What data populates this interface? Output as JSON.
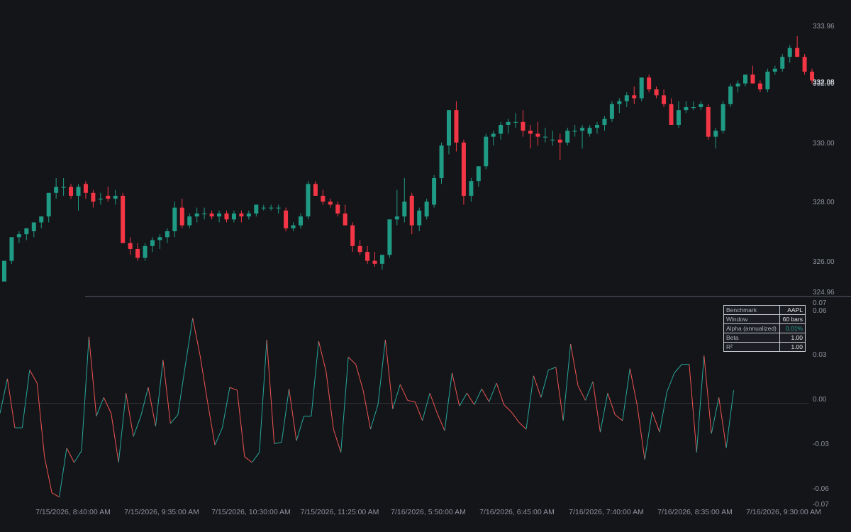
{
  "colors": {
    "background": "#141519",
    "up": "#26a69a",
    "down": "#ef5350",
    "up_body": "#1f9a84",
    "down_body": "#f23645",
    "pane_divider": "#5a5e66",
    "zero_line": "#2f3237",
    "table_border": "#c6cad2"
  },
  "price_axis": {
    "labels": [
      "333.96",
      "332.00",
      "330.00",
      "328.00",
      "326.00",
      "324.96"
    ],
    "last_price": "332.08"
  },
  "indicator_axis": {
    "labels": [
      "0.07",
      "0.06",
      "0.03",
      "0.00",
      "-0.03",
      "-0.06",
      "-0.07"
    ]
  },
  "time_axis": {
    "labels": [
      "7/15/2026, 8:40:00 AM",
      "7/15/2026, 9:35:00 AM",
      "7/15/2026, 10:30:00 AM",
      "7/15/2026, 11:25:00 AM",
      "7/16/2026, 5:50:00 AM",
      "7/16/2026, 6:45:00 AM",
      "7/16/2026, 7:40:00 AM",
      "7/16/2026, 8:35:00 AM",
      "7/16/2026, 9:30:00 AM"
    ]
  },
  "stats_table": [
    {
      "key": "Benchmark",
      "value": "AAPL",
      "tone": "neutral"
    },
    {
      "key": "Window",
      "value": "60 bars",
      "tone": "neutral"
    },
    {
      "key": "Alpha (annualized)",
      "value": "0.01%",
      "tone": "positive"
    },
    {
      "key": "Beta",
      "value": "1.00",
      "tone": "neutral"
    },
    {
      "key": "R²",
      "value": "1.00",
      "tone": "neutral"
    }
  ],
  "chart_data": {
    "type": "candlestick",
    "bar_interval_minutes": 5,
    "price_range": [
      324.96,
      333.96
    ],
    "indicator_range": [
      -0.07,
      0.07
    ],
    "candles": [
      {
        "o": 325.3,
        "h": 326.0,
        "l": 325.3,
        "c": 326.0
      },
      {
        "o": 326.0,
        "h": 326.8,
        "l": 325.9,
        "c": 326.8
      },
      {
        "o": 326.8,
        "h": 327.0,
        "l": 326.6,
        "c": 326.9
      },
      {
        "o": 326.9,
        "h": 327.1,
        "l": 326.7,
        "c": 327.1
      },
      {
        "o": 327.0,
        "h": 327.3,
        "l": 326.8,
        "c": 327.3
      },
      {
        "o": 327.3,
        "h": 327.5,
        "l": 327.1,
        "c": 327.5
      },
      {
        "o": 327.5,
        "h": 328.3,
        "l": 327.3,
        "c": 328.3
      },
      {
        "o": 328.3,
        "h": 328.8,
        "l": 328.1,
        "c": 328.5
      },
      {
        "o": 328.5,
        "h": 328.8,
        "l": 328.2,
        "c": 328.5
      },
      {
        "o": 328.5,
        "h": 328.6,
        "l": 328.1,
        "c": 328.2
      },
      {
        "o": 328.2,
        "h": 328.6,
        "l": 327.7,
        "c": 328.5
      },
      {
        "o": 328.6,
        "h": 328.7,
        "l": 328.1,
        "c": 328.3
      },
      {
        "o": 328.3,
        "h": 328.4,
        "l": 327.8,
        "c": 328.0
      },
      {
        "o": 328.1,
        "h": 328.3,
        "l": 327.9,
        "c": 328.1
      },
      {
        "o": 328.2,
        "h": 328.5,
        "l": 328.0,
        "c": 328.1
      },
      {
        "o": 328.1,
        "h": 328.4,
        "l": 327.9,
        "c": 328.2
      },
      {
        "o": 328.2,
        "h": 328.3,
        "l": 326.6,
        "c": 326.6
      },
      {
        "o": 326.6,
        "h": 326.8,
        "l": 326.2,
        "c": 326.4
      },
      {
        "o": 326.4,
        "h": 326.6,
        "l": 326.0,
        "c": 326.1
      },
      {
        "o": 326.1,
        "h": 326.6,
        "l": 326.0,
        "c": 326.5
      },
      {
        "o": 326.5,
        "h": 326.8,
        "l": 326.3,
        "c": 326.7
      },
      {
        "o": 326.7,
        "h": 326.9,
        "l": 326.4,
        "c": 326.8
      },
      {
        "o": 326.8,
        "h": 327.1,
        "l": 326.6,
        "c": 327.0
      },
      {
        "o": 327.0,
        "h": 328.0,
        "l": 326.8,
        "c": 327.8
      },
      {
        "o": 327.8,
        "h": 328.1,
        "l": 327.1,
        "c": 327.2
      },
      {
        "o": 327.2,
        "h": 327.6,
        "l": 327.1,
        "c": 327.5
      },
      {
        "o": 327.5,
        "h": 327.8,
        "l": 327.3,
        "c": 327.6
      },
      {
        "o": 327.6,
        "h": 327.8,
        "l": 327.4,
        "c": 327.6
      },
      {
        "o": 327.6,
        "h": 327.7,
        "l": 327.4,
        "c": 327.5
      },
      {
        "o": 327.5,
        "h": 327.7,
        "l": 327.3,
        "c": 327.6
      },
      {
        "o": 327.6,
        "h": 327.7,
        "l": 327.3,
        "c": 327.4
      },
      {
        "o": 327.4,
        "h": 327.7,
        "l": 327.3,
        "c": 327.6
      },
      {
        "o": 327.6,
        "h": 327.7,
        "l": 327.3,
        "c": 327.5
      },
      {
        "o": 327.5,
        "h": 327.7,
        "l": 327.4,
        "c": 327.6
      },
      {
        "o": 327.6,
        "h": 327.9,
        "l": 327.5,
        "c": 327.9
      },
      {
        "o": 327.8,
        "h": 327.9,
        "l": 327.7,
        "c": 327.8
      },
      {
        "o": 327.8,
        "h": 327.9,
        "l": 327.7,
        "c": 327.8
      },
      {
        "o": 327.8,
        "h": 327.9,
        "l": 327.6,
        "c": 327.8
      },
      {
        "o": 327.7,
        "h": 327.8,
        "l": 327.0,
        "c": 327.1
      },
      {
        "o": 327.1,
        "h": 327.3,
        "l": 327.0,
        "c": 327.2
      },
      {
        "o": 327.2,
        "h": 327.6,
        "l": 327.1,
        "c": 327.5
      },
      {
        "o": 327.5,
        "h": 328.7,
        "l": 327.4,
        "c": 328.6
      },
      {
        "o": 328.6,
        "h": 328.7,
        "l": 328.2,
        "c": 328.2
      },
      {
        "o": 328.2,
        "h": 328.4,
        "l": 327.9,
        "c": 328.0
      },
      {
        "o": 328.0,
        "h": 328.1,
        "l": 327.8,
        "c": 327.9
      },
      {
        "o": 327.9,
        "h": 328.0,
        "l": 327.5,
        "c": 327.6
      },
      {
        "o": 327.6,
        "h": 327.9,
        "l": 327.2,
        "c": 327.2
      },
      {
        "o": 327.2,
        "h": 327.3,
        "l": 326.3,
        "c": 326.5
      },
      {
        "o": 326.5,
        "h": 326.7,
        "l": 326.2,
        "c": 326.3
      },
      {
        "o": 326.3,
        "h": 326.5,
        "l": 325.9,
        "c": 326.0
      },
      {
        "o": 326.0,
        "h": 326.3,
        "l": 325.8,
        "c": 325.9
      },
      {
        "o": 325.9,
        "h": 326.2,
        "l": 325.7,
        "c": 326.2
      },
      {
        "o": 326.2,
        "h": 327.4,
        "l": 326.1,
        "c": 327.4
      },
      {
        "o": 327.4,
        "h": 328.4,
        "l": 327.2,
        "c": 327.5
      },
      {
        "o": 327.5,
        "h": 328.8,
        "l": 327.3,
        "c": 328.0
      },
      {
        "o": 328.2,
        "h": 328.3,
        "l": 326.9,
        "c": 327.2
      },
      {
        "o": 327.2,
        "h": 327.8,
        "l": 327.0,
        "c": 327.7
      },
      {
        "o": 327.5,
        "h": 328.1,
        "l": 327.4,
        "c": 328.0
      },
      {
        "o": 327.9,
        "h": 328.9,
        "l": 327.8,
        "c": 328.8
      },
      {
        "o": 328.8,
        "h": 330.0,
        "l": 328.6,
        "c": 329.9
      },
      {
        "o": 329.9,
        "h": 331.1,
        "l": 329.6,
        "c": 331.1
      },
      {
        "o": 331.1,
        "h": 331.4,
        "l": 329.7,
        "c": 330.0
      },
      {
        "o": 330.0,
        "h": 330.1,
        "l": 327.9,
        "c": 328.2
      },
      {
        "o": 328.2,
        "h": 328.8,
        "l": 328.0,
        "c": 328.7
      },
      {
        "o": 328.7,
        "h": 329.2,
        "l": 328.5,
        "c": 329.2
      },
      {
        "o": 329.2,
        "h": 330.3,
        "l": 329.1,
        "c": 330.2
      },
      {
        "o": 330.2,
        "h": 330.4,
        "l": 329.9,
        "c": 330.3
      },
      {
        "o": 330.3,
        "h": 330.7,
        "l": 330.1,
        "c": 330.6
      },
      {
        "o": 330.6,
        "h": 330.8,
        "l": 330.3,
        "c": 330.7
      },
      {
        "o": 330.7,
        "h": 331.0,
        "l": 330.5,
        "c": 330.7
      },
      {
        "o": 330.7,
        "h": 331.1,
        "l": 330.2,
        "c": 330.4
      },
      {
        "o": 330.4,
        "h": 330.6,
        "l": 329.8,
        "c": 330.3
      },
      {
        "o": 330.3,
        "h": 330.7,
        "l": 329.9,
        "c": 330.2
      },
      {
        "o": 330.2,
        "h": 330.5,
        "l": 330.0,
        "c": 330.2
      },
      {
        "o": 330.1,
        "h": 330.4,
        "l": 329.9,
        "c": 330.1
      },
      {
        "o": 330.1,
        "h": 330.3,
        "l": 329.4,
        "c": 330.0
      },
      {
        "o": 330.0,
        "h": 330.5,
        "l": 329.9,
        "c": 330.4
      },
      {
        "o": 330.4,
        "h": 330.6,
        "l": 330.2,
        "c": 330.4
      },
      {
        "o": 330.4,
        "h": 330.6,
        "l": 329.8,
        "c": 330.5
      },
      {
        "o": 330.3,
        "h": 330.6,
        "l": 330.2,
        "c": 330.5
      },
      {
        "o": 330.5,
        "h": 330.7,
        "l": 330.3,
        "c": 330.6
      },
      {
        "o": 330.6,
        "h": 330.9,
        "l": 330.4,
        "c": 330.8
      },
      {
        "o": 330.8,
        "h": 331.4,
        "l": 330.7,
        "c": 331.3
      },
      {
        "o": 331.3,
        "h": 331.5,
        "l": 331.0,
        "c": 331.4
      },
      {
        "o": 331.4,
        "h": 331.7,
        "l": 331.2,
        "c": 331.6
      },
      {
        "o": 331.6,
        "h": 331.9,
        "l": 331.3,
        "c": 331.5
      },
      {
        "o": 331.5,
        "h": 332.2,
        "l": 331.4,
        "c": 332.2
      },
      {
        "o": 332.2,
        "h": 332.3,
        "l": 331.7,
        "c": 331.8
      },
      {
        "o": 331.8,
        "h": 331.9,
        "l": 331.5,
        "c": 331.6
      },
      {
        "o": 331.6,
        "h": 331.8,
        "l": 331.2,
        "c": 331.3
      },
      {
        "o": 331.3,
        "h": 331.5,
        "l": 330.6,
        "c": 330.6
      },
      {
        "o": 330.6,
        "h": 331.4,
        "l": 330.5,
        "c": 331.1
      },
      {
        "o": 331.1,
        "h": 331.4,
        "l": 331.0,
        "c": 331.2
      },
      {
        "o": 331.2,
        "h": 331.4,
        "l": 331.1,
        "c": 331.2
      },
      {
        "o": 331.2,
        "h": 331.4,
        "l": 331.1,
        "c": 331.3
      },
      {
        "o": 331.2,
        "h": 331.3,
        "l": 330.1,
        "c": 330.2
      },
      {
        "o": 330.2,
        "h": 330.5,
        "l": 329.8,
        "c": 330.4
      },
      {
        "o": 330.4,
        "h": 331.4,
        "l": 330.3,
        "c": 331.3
      },
      {
        "o": 331.3,
        "h": 332.0,
        "l": 331.2,
        "c": 331.9
      },
      {
        "o": 331.9,
        "h": 332.1,
        "l": 331.7,
        "c": 332.0
      },
      {
        "o": 332.0,
        "h": 332.3,
        "l": 331.9,
        "c": 332.3
      },
      {
        "o": 332.3,
        "h": 332.6,
        "l": 332.0,
        "c": 332.0
      },
      {
        "o": 332.0,
        "h": 332.1,
        "l": 331.7,
        "c": 331.8
      },
      {
        "o": 331.8,
        "h": 332.5,
        "l": 331.7,
        "c": 332.4
      },
      {
        "o": 332.4,
        "h": 332.6,
        "l": 332.3,
        "c": 332.5
      },
      {
        "o": 332.5,
        "h": 333.0,
        "l": 332.4,
        "c": 332.9
      },
      {
        "o": 332.9,
        "h": 333.3,
        "l": 332.7,
        "c": 333.2
      },
      {
        "o": 333.2,
        "h": 333.6,
        "l": 332.9,
        "c": 332.9
      },
      {
        "o": 332.9,
        "h": 333.0,
        "l": 332.3,
        "c": 332.4
      },
      {
        "o": 332.4,
        "h": 332.5,
        "l": 332.0,
        "c": 332.1
      }
    ],
    "indicator": [
      -0.007,
      0.017,
      -0.017,
      -0.017,
      0.023,
      0.014,
      -0.037,
      -0.062,
      -0.065,
      -0.031,
      -0.041,
      -0.033,
      0.046,
      -0.009,
      0.004,
      -0.007,
      -0.041,
      0.007,
      -0.023,
      -0.009,
      0.011,
      -0.016,
      0.03,
      -0.014,
      -0.008,
      0.026,
      0.059,
      0.033,
      0.001,
      -0.029,
      -0.017,
      0.011,
      0.009,
      -0.037,
      -0.041,
      -0.034,
      0.044,
      -0.028,
      -0.027,
      0.01,
      -0.026,
      -0.009,
      -0.009,
      0.043,
      0.022,
      -0.018,
      -0.034,
      0.032,
      0.027,
      0.009,
      -0.018,
      -0.001,
      0.044,
      -0.004,
      0.013,
      0.002,
      0.001,
      -0.012,
      0.007,
      -0.007,
      -0.019,
      0.021,
      -0.002,
      0.007,
      -0.001,
      0.01,
      0.001,
      0.014,
      -0.001,
      -0.006,
      -0.013,
      -0.018,
      0.019,
      0.004,
      0.023,
      0.025,
      -0.012,
      0.041,
      0.012,
      0.002,
      0.015,
      -0.02,
      0.007,
      -0.008,
      -0.012,
      0.024,
      -0.002,
      -0.039,
      -0.006,
      -0.02,
      0.008,
      0.021,
      0.027,
      0.027,
      -0.034,
      0.033,
      -0.021,
      0.004,
      -0.031,
      0.009
    ]
  }
}
